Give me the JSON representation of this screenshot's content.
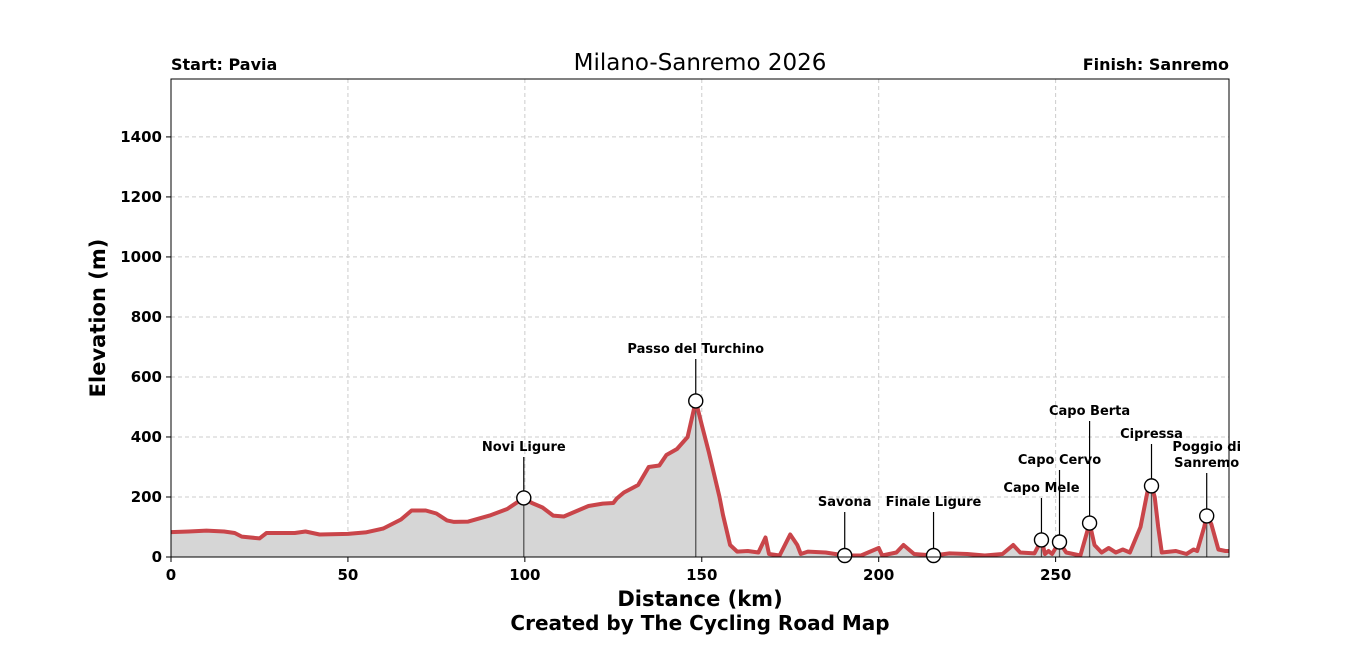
{
  "chart_data": {
    "type": "area",
    "title": "Milano-Sanremo 2026",
    "start_label": "Start: Pavia",
    "finish_label": "Finish: Sanremo",
    "xlabel": "Distance (km)",
    "ylabel": "Elevation (m)",
    "credit": "Created by The Cycling Road Map",
    "xlim": [
      0,
      299
    ],
    "ylim": [
      0,
      1593
    ],
    "xticks": [
      0,
      50,
      100,
      150,
      200,
      250
    ],
    "yticks": [
      0,
      200,
      400,
      600,
      800,
      1000,
      1200,
      1400
    ],
    "grid": true,
    "line_color": "#c9454a",
    "fill_color": "#d6d6d6",
    "profile": [
      [
        0,
        83
      ],
      [
        5,
        85
      ],
      [
        10,
        88
      ],
      [
        15,
        85
      ],
      [
        18,
        80
      ],
      [
        20,
        68
      ],
      [
        25,
        62
      ],
      [
        27,
        80
      ],
      [
        35,
        80
      ],
      [
        38,
        85
      ],
      [
        42,
        75
      ],
      [
        50,
        77
      ],
      [
        55,
        82
      ],
      [
        60,
        95
      ],
      [
        65,
        125
      ],
      [
        68,
        155
      ],
      [
        72,
        155
      ],
      [
        75,
        145
      ],
      [
        78,
        122
      ],
      [
        80,
        117
      ],
      [
        84,
        118
      ],
      [
        90,
        138
      ],
      [
        95,
        160
      ],
      [
        99.7,
        197
      ],
      [
        102,
        180
      ],
      [
        105,
        165
      ],
      [
        108,
        138
      ],
      [
        111,
        135
      ],
      [
        115,
        155
      ],
      [
        118,
        170
      ],
      [
        122,
        178
      ],
      [
        125,
        180
      ],
      [
        126,
        195
      ],
      [
        128,
        215
      ],
      [
        132,
        240
      ],
      [
        135,
        300
      ],
      [
        138,
        305
      ],
      [
        140,
        340
      ],
      [
        143,
        360
      ],
      [
        146,
        400
      ],
      [
        148.3,
        520
      ],
      [
        150,
        440
      ],
      [
        152,
        350
      ],
      [
        155,
        200
      ],
      [
        156,
        140
      ],
      [
        158,
        40
      ],
      [
        160,
        18
      ],
      [
        163,
        20
      ],
      [
        166,
        15
      ],
      [
        168,
        65
      ],
      [
        169,
        10
      ],
      [
        172,
        5
      ],
      [
        175,
        75
      ],
      [
        177,
        40
      ],
      [
        178,
        10
      ],
      [
        180,
        18
      ],
      [
        185,
        15
      ],
      [
        190.4,
        5
      ],
      [
        195,
        5
      ],
      [
        200,
        30
      ],
      [
        201,
        5
      ],
      [
        205,
        15
      ],
      [
        207,
        40
      ],
      [
        210,
        10
      ],
      [
        215.5,
        5
      ],
      [
        220,
        12
      ],
      [
        225,
        10
      ],
      [
        230,
        5
      ],
      [
        235,
        10
      ],
      [
        238,
        40
      ],
      [
        240,
        15
      ],
      [
        244,
        12
      ],
      [
        246,
        57
      ],
      [
        247,
        10
      ],
      [
        248,
        20
      ],
      [
        249,
        10
      ],
      [
        251,
        50
      ],
      [
        253,
        15
      ],
      [
        257,
        5
      ],
      [
        259.6,
        113
      ],
      [
        261,
        40
      ],
      [
        263,
        15
      ],
      [
        265,
        30
      ],
      [
        267,
        15
      ],
      [
        269,
        25
      ],
      [
        271,
        15
      ],
      [
        274,
        100
      ],
      [
        276,
        220
      ],
      [
        277.1,
        237
      ],
      [
        278,
        200
      ],
      [
        279,
        100
      ],
      [
        280,
        15
      ],
      [
        284,
        20
      ],
      [
        287,
        10
      ],
      [
        289,
        25
      ],
      [
        290,
        20
      ],
      [
        292,
        100
      ],
      [
        292.7,
        137
      ],
      [
        294,
        110
      ],
      [
        296,
        25
      ],
      [
        298,
        20
      ],
      [
        299,
        20
      ]
    ],
    "climbs": [
      {
        "name": "Novi Ligure",
        "km": 99.7,
        "elevation": 197
      },
      {
        "name": "Passo del Turchino",
        "km": 148.3,
        "elevation": 520
      },
      {
        "name": "Savona",
        "km": 190.4,
        "elevation": 5
      },
      {
        "name": "Finale Ligure",
        "km": 215.5,
        "elevation": 5
      },
      {
        "name": "Capo Mele",
        "km": 246,
        "elevation": 57
      },
      {
        "name": "Capo Cervo",
        "km": 251.1,
        "elevation": 50
      },
      {
        "name": "Capo Berta",
        "km": 259.6,
        "elevation": 113
      },
      {
        "name": "Cipressa",
        "km": 277.1,
        "elevation": 237
      },
      {
        "name": "Poggio di\nSanremo",
        "km": 292.7,
        "elevation": 137
      }
    ]
  }
}
